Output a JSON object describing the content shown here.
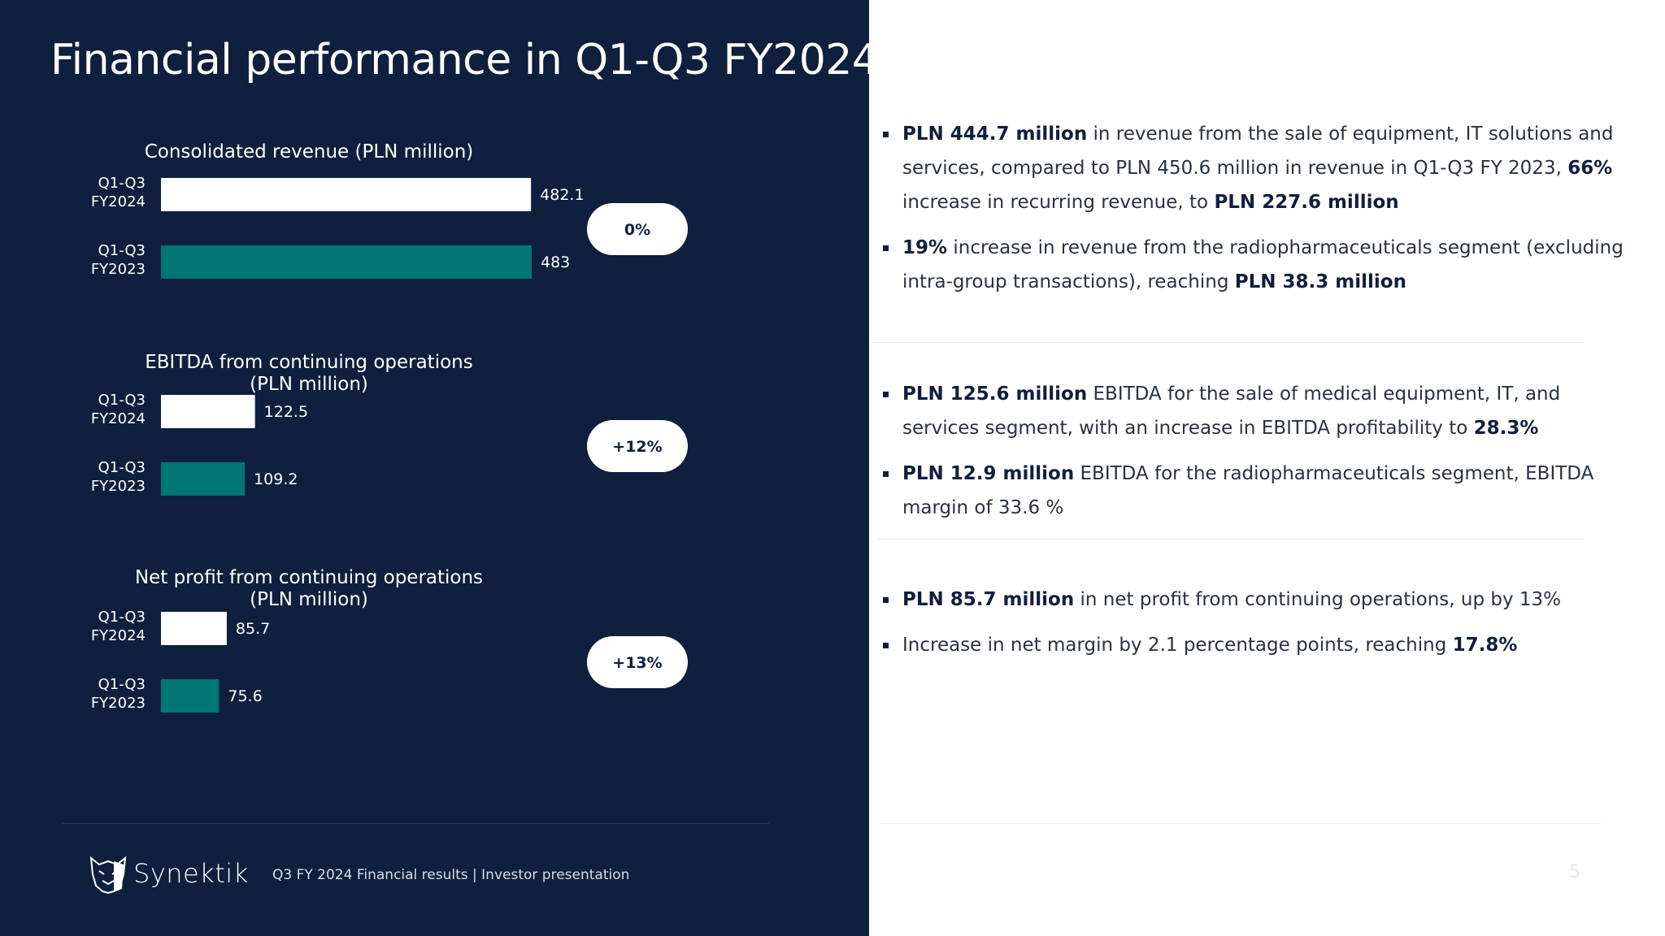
{
  "page": {
    "title": "Financial performance in Q1-Q3 FY2024",
    "number": "5"
  },
  "footer": {
    "logo_text": "Synektik",
    "text": "Q3 FY 2024 Financial results |  Investor presentation"
  },
  "colors": {
    "background": "#0f1f3d",
    "current_year": "#ffffff",
    "previous_year": "#007770"
  },
  "chart_data": [
    {
      "type": "bar",
      "orientation": "horizontal",
      "title": [
        "Consolidated revenue (PLN million)"
      ],
      "categories": [
        [
          "Q1-Q3",
          "FY2024"
        ],
        [
          "Q1-Q3",
          "FY2023"
        ]
      ],
      "values": [
        482.1,
        483
      ],
      "value_labels": [
        "482.1",
        "483"
      ],
      "change": "0%"
    },
    {
      "type": "bar",
      "orientation": "horizontal",
      "title": [
        "EBITDA from continuing operations",
        "(PLN million)"
      ],
      "categories": [
        [
          "Q1-Q3",
          "FY2024"
        ],
        [
          "Q1-Q3",
          "FY2023"
        ]
      ],
      "values": [
        122.5,
        109.2
      ],
      "value_labels": [
        "122.5",
        "109.2"
      ],
      "change": "+12%"
    },
    {
      "type": "bar",
      "orientation": "horizontal",
      "title": [
        "Net profit from continuing operations",
        "(PLN million)"
      ],
      "categories": [
        [
          "Q1-Q3",
          "FY2024"
        ],
        [
          "Q1-Q3",
          "FY2023"
        ]
      ],
      "values": [
        85.7,
        75.6
      ],
      "value_labels": [
        "85.7",
        "75.6"
      ],
      "change": "+13%"
    }
  ],
  "bullets": [
    {
      "group": 1,
      "items": [
        [
          {
            "text": "PLN 444.7 million",
            "bold": true
          },
          {
            "text": " in revenue from the sale of equipment, IT solutions and services, compared to PLN 450.6 million in revenue in Q1-Q3 FY 2023, ",
            "bold": false
          },
          {
            "text": "66%",
            "bold": true
          },
          {
            "text": " increase in recurring revenue, to ",
            "bold": false
          },
          {
            "text": "PLN 227.6 million",
            "bold": true
          }
        ],
        [
          {
            "text": "19%",
            "bold": true
          },
          {
            "text": " increase in revenue from the radiopharmaceuticals segment (excluding intra-group transactions), reaching ",
            "bold": false
          },
          {
            "text": "PLN 38.3 million",
            "bold": true
          }
        ]
      ]
    },
    {
      "group": 2,
      "items": [
        [
          {
            "text": "PLN 125.6 million",
            "bold": true
          },
          {
            "text": " EBITDA for the sale of medical equipment, IT, and services segment, with an increase in EBITDA profitability to ",
            "bold": false
          },
          {
            "text": "28.3%",
            "bold": true
          }
        ],
        [
          {
            "text": "PLN 12.9 million",
            "bold": true
          },
          {
            "text": " EBITDA for the radiopharmaceuticals segment, EBITDA margin of 33.6 %",
            "bold": false
          }
        ]
      ]
    },
    {
      "group": 3,
      "items": [
        [
          {
            "text": "PLN 85.7 million",
            "bold": true
          },
          {
            "text": " in net profit from continuing operations, up by 13%",
            "bold": false
          }
        ],
        [
          {
            "text": "Increase in net margin by 2.1 percentage points, reaching ",
            "bold": false
          },
          {
            "text": "17.8%",
            "bold": true
          }
        ]
      ]
    }
  ]
}
